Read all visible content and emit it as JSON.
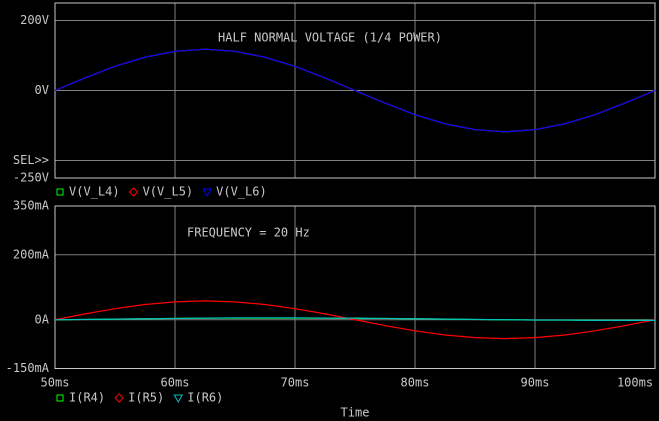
{
  "chart_data": [
    {
      "type": "line",
      "annotation": "HALF NORMAL VOLTAGE (1/4 POWER)",
      "x": [
        50,
        52.5,
        55,
        57.5,
        60,
        62.5,
        65,
        67.5,
        70,
        72.5,
        75,
        77.5,
        80,
        82.5,
        85,
        87.5,
        90,
        92.5,
        95,
        97.5,
        100
      ],
      "xlim": [
        50,
        100
      ],
      "ylim": [
        -250,
        250
      ],
      "yticks": [
        {
          "value": 200,
          "label": "200V"
        },
        {
          "value": 0,
          "label": "0V"
        },
        {
          "value": -200,
          "label": "SEL>>"
        },
        {
          "value": -250,
          "label": "-250V"
        }
      ],
      "grid": true,
      "series": [
        {
          "name": "V(V_L4)",
          "color": "#00ff00",
          "values": [
            0,
            36,
            69,
            95,
            112,
            118,
            112,
            95,
            69,
            36,
            0,
            -36,
            -69,
            -95,
            -112,
            -118,
            -112,
            -95,
            -69,
            -36,
            0
          ]
        },
        {
          "name": "V(V_L5)",
          "color": "#ff0000",
          "values": [
            0,
            36,
            69,
            95,
            112,
            118,
            112,
            95,
            69,
            36,
            0,
            -36,
            -69,
            -95,
            -112,
            -118,
            -112,
            -95,
            -69,
            -36,
            0
          ]
        },
        {
          "name": "V(V_L6)",
          "color": "#0000ff",
          "values": [
            0,
            36,
            69,
            95,
            112,
            118,
            112,
            95,
            69,
            36,
            0,
            -36,
            -69,
            -95,
            -112,
            -118,
            -112,
            -95,
            -69,
            -36,
            0
          ]
        }
      ]
    },
    {
      "type": "line",
      "annotation": "FREQUENCY = 20 Hz",
      "x_label": "Time",
      "x": [
        50,
        52.5,
        55,
        57.5,
        60,
        62.5,
        65,
        67.5,
        70,
        72.5,
        75,
        77.5,
        80,
        82.5,
        85,
        87.5,
        90,
        92.5,
        95,
        97.5,
        100
      ],
      "xlim": [
        50,
        100
      ],
      "xticks": [
        {
          "value": 50,
          "label": "50ms"
        },
        {
          "value": 60,
          "label": "60ms"
        },
        {
          "value": 70,
          "label": "70ms"
        },
        {
          "value": 80,
          "label": "80ms"
        },
        {
          "value": 90,
          "label": "90ms"
        },
        {
          "value": 100,
          "label": "100ms"
        }
      ],
      "ylim": [
        -150,
        350
      ],
      "yticks": [
        {
          "value": 350,
          "label": "350mA"
        },
        {
          "value": 200,
          "label": "200mA"
        },
        {
          "value": 0,
          "label": "0A"
        },
        {
          "value": -150,
          "label": "-150mA"
        }
      ],
      "grid": true,
      "series": [
        {
          "name": "I(R4)",
          "color": "#00ff00",
          "values": [
            0,
            1,
            2,
            3,
            4,
            5,
            5,
            5,
            5,
            5,
            4,
            4,
            3,
            2,
            1,
            0,
            -1,
            -1,
            -2,
            -2,
            -2
          ]
        },
        {
          "name": "I(R5)",
          "color": "#ff0000",
          "values": [
            0,
            18,
            34,
            47,
            55,
            58,
            55,
            47,
            34,
            18,
            0,
            -18,
            -34,
            -47,
            -55,
            -58,
            -55,
            -47,
            -34,
            -18,
            0
          ]
        },
        {
          "name": "I(R6)",
          "color": "#00c0c0",
          "values": [
            0,
            1,
            2,
            3,
            4,
            5,
            6,
            6,
            6,
            5,
            5,
            4,
            3,
            2,
            1,
            0,
            -1,
            -1,
            -2,
            -2,
            -2
          ]
        }
      ]
    }
  ]
}
